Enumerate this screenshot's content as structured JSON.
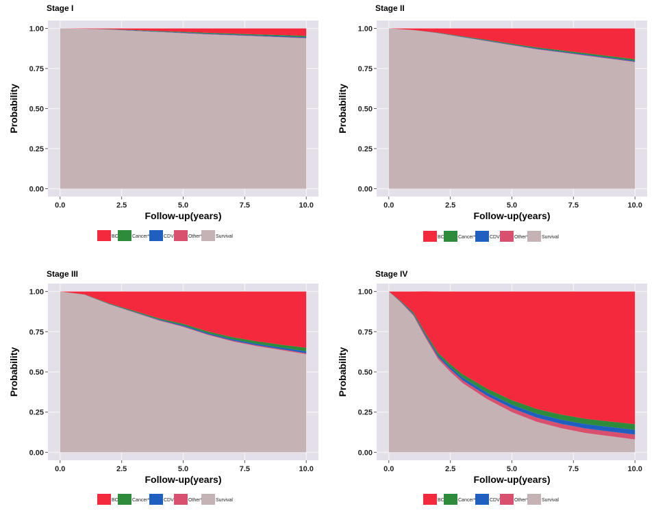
{
  "chart_data": [
    {
      "type": "area",
      "title": "Stage I",
      "xlabel": "Follow-up(years)",
      "ylabel": "Probability",
      "xlim": [
        0,
        10
      ],
      "ylim": [
        0,
        1
      ],
      "x_ticks": [
        "0.0",
        "2.5",
        "5.0",
        "7.5",
        "10.0"
      ],
      "y_ticks": [
        "0.00",
        "0.25",
        "0.50",
        "0.75",
        "1.00"
      ],
      "stacked": true,
      "grid": true,
      "legend_position": "bottom",
      "x": [
        0,
        1,
        2,
        3,
        4,
        5,
        6,
        7,
        8,
        9,
        10
      ],
      "series": [
        {
          "name": "Survival",
          "values": [
            1.0,
            0.998,
            0.993,
            0.985,
            0.978,
            0.97,
            0.963,
            0.957,
            0.951,
            0.945,
            0.938
          ]
        },
        {
          "name": "Other*",
          "values": [
            0,
            0,
            0.001,
            0.001,
            0.001,
            0.002,
            0.002,
            0.002,
            0.002,
            0.002,
            0.003
          ]
        },
        {
          "name": "CDV",
          "values": [
            0,
            0,
            0.001,
            0.002,
            0.002,
            0.003,
            0.003,
            0.004,
            0.004,
            0.005,
            0.005
          ]
        },
        {
          "name": "Cancer*",
          "values": [
            0,
            0,
            0.001,
            0.002,
            0.003,
            0.004,
            0.005,
            0.005,
            0.006,
            0.007,
            0.008
          ]
        },
        {
          "name": "BC",
          "values": [
            0,
            0.002,
            0.004,
            0.01,
            0.016,
            0.021,
            0.027,
            0.032,
            0.037,
            0.041,
            0.046
          ]
        }
      ]
    },
    {
      "type": "area",
      "title": "Stage II",
      "xlabel": "Follow-up(years)",
      "ylabel": "Probability",
      "xlim": [
        0,
        10
      ],
      "ylim": [
        0,
        1
      ],
      "x_ticks": [
        "0.0",
        "2.5",
        "5.0",
        "7.5",
        "10.0"
      ],
      "y_ticks": [
        "0.00",
        "0.25",
        "0.50",
        "0.75",
        "1.00"
      ],
      "stacked": true,
      "grid": true,
      "legend_position": "bottom",
      "x": [
        0,
        1,
        2,
        3,
        4,
        5,
        6,
        7,
        8,
        9,
        10
      ],
      "series": [
        {
          "name": "Survival",
          "values": [
            1.0,
            0.99,
            0.97,
            0.945,
            0.92,
            0.895,
            0.87,
            0.85,
            0.83,
            0.81,
            0.79
          ]
        },
        {
          "name": "Other*",
          "values": [
            0,
            0,
            0.001,
            0.001,
            0.002,
            0.002,
            0.002,
            0.003,
            0.003,
            0.003,
            0.003
          ]
        },
        {
          "name": "CDV",
          "values": [
            0,
            0,
            0.001,
            0.002,
            0.003,
            0.003,
            0.004,
            0.004,
            0.005,
            0.005,
            0.005
          ]
        },
        {
          "name": "Cancer*",
          "values": [
            0,
            0,
            0.002,
            0.003,
            0.004,
            0.005,
            0.006,
            0.007,
            0.008,
            0.009,
            0.01
          ]
        },
        {
          "name": "BC",
          "values": [
            0,
            0.01,
            0.026,
            0.049,
            0.071,
            0.095,
            0.118,
            0.136,
            0.154,
            0.173,
            0.192
          ]
        }
      ]
    },
    {
      "type": "area",
      "title": "Stage III",
      "xlabel": "Follow-up(years)",
      "ylabel": "Probability",
      "xlim": [
        0,
        10
      ],
      "ylim": [
        0,
        1
      ],
      "x_ticks": [
        "0.0",
        "2.5",
        "5.0",
        "7.5",
        "10.0"
      ],
      "y_ticks": [
        "0.00",
        "0.25",
        "0.50",
        "0.75",
        "1.00"
      ],
      "stacked": true,
      "grid": true,
      "legend_position": "bottom",
      "x": [
        0,
        1,
        2,
        3,
        4,
        5,
        6,
        7,
        8,
        9,
        10
      ],
      "series": [
        {
          "name": "Survival",
          "values": [
            1.0,
            0.98,
            0.92,
            0.87,
            0.82,
            0.78,
            0.73,
            0.69,
            0.66,
            0.635,
            0.61
          ]
        },
        {
          "name": "Other*",
          "values": [
            0,
            0,
            0.001,
            0.002,
            0.003,
            0.004,
            0.004,
            0.005,
            0.005,
            0.006,
            0.006
          ]
        },
        {
          "name": "CDV",
          "values": [
            0,
            0.001,
            0.002,
            0.003,
            0.004,
            0.006,
            0.007,
            0.008,
            0.009,
            0.01,
            0.012
          ]
        },
        {
          "name": "Cancer*",
          "values": [
            0,
            0.001,
            0.003,
            0.005,
            0.007,
            0.009,
            0.011,
            0.013,
            0.016,
            0.018,
            0.022
          ]
        },
        {
          "name": "BC",
          "values": [
            0,
            0.018,
            0.074,
            0.12,
            0.166,
            0.201,
            0.248,
            0.284,
            0.31,
            0.331,
            0.35
          ]
        }
      ]
    },
    {
      "type": "area",
      "title": "Stage IV",
      "xlabel": "Follow-up(years)",
      "ylabel": "Probability",
      "xlim": [
        0,
        10
      ],
      "ylim": [
        0,
        1
      ],
      "x_ticks": [
        "0.0",
        "2.5",
        "5.0",
        "7.5",
        "10.0"
      ],
      "y_ticks": [
        "0.00",
        "0.25",
        "0.50",
        "0.75",
        "1.00"
      ],
      "stacked": true,
      "grid": true,
      "legend_position": "bottom",
      "x": [
        0,
        0.5,
        1,
        1.5,
        2,
        2.5,
        3,
        4,
        5,
        6,
        7,
        8,
        9,
        10
      ],
      "series": [
        {
          "name": "Survival",
          "values": [
            1.0,
            0.93,
            0.85,
            0.71,
            0.58,
            0.5,
            0.43,
            0.33,
            0.25,
            0.19,
            0.15,
            0.12,
            0.1,
            0.08
          ]
        },
        {
          "name": "Other*",
          "values": [
            0,
            0.003,
            0.006,
            0.01,
            0.013,
            0.016,
            0.018,
            0.021,
            0.024,
            0.026,
            0.027,
            0.028,
            0.029,
            0.03
          ]
        },
        {
          "name": "CDV",
          "values": [
            0,
            0.003,
            0.006,
            0.009,
            0.012,
            0.014,
            0.016,
            0.019,
            0.022,
            0.024,
            0.026,
            0.027,
            0.028,
            0.03
          ]
        },
        {
          "name": "Cancer*",
          "values": [
            0,
            0.004,
            0.008,
            0.011,
            0.015,
            0.018,
            0.021,
            0.025,
            0.028,
            0.03,
            0.032,
            0.033,
            0.034,
            0.035
          ]
        },
        {
          "name": "BC",
          "values": [
            0,
            0.06,
            0.13,
            0.261,
            0.38,
            0.452,
            0.515,
            0.605,
            0.676,
            0.73,
            0.765,
            0.792,
            0.809,
            0.825
          ]
        }
      ]
    }
  ],
  "legend": {
    "order": [
      "BC",
      "Cancer*",
      "CDV",
      "Other*",
      "Survival"
    ],
    "colors": {
      "BC": "#f5293d",
      "Cancer*": "#2e8b3b",
      "CDV": "#1f5fbf",
      "Other*": "#d94f6e",
      "Survival": "#c4b2b4"
    }
  },
  "colors": {
    "panel_background": "#e4e0ea",
    "grid": "#f4f2f6"
  }
}
